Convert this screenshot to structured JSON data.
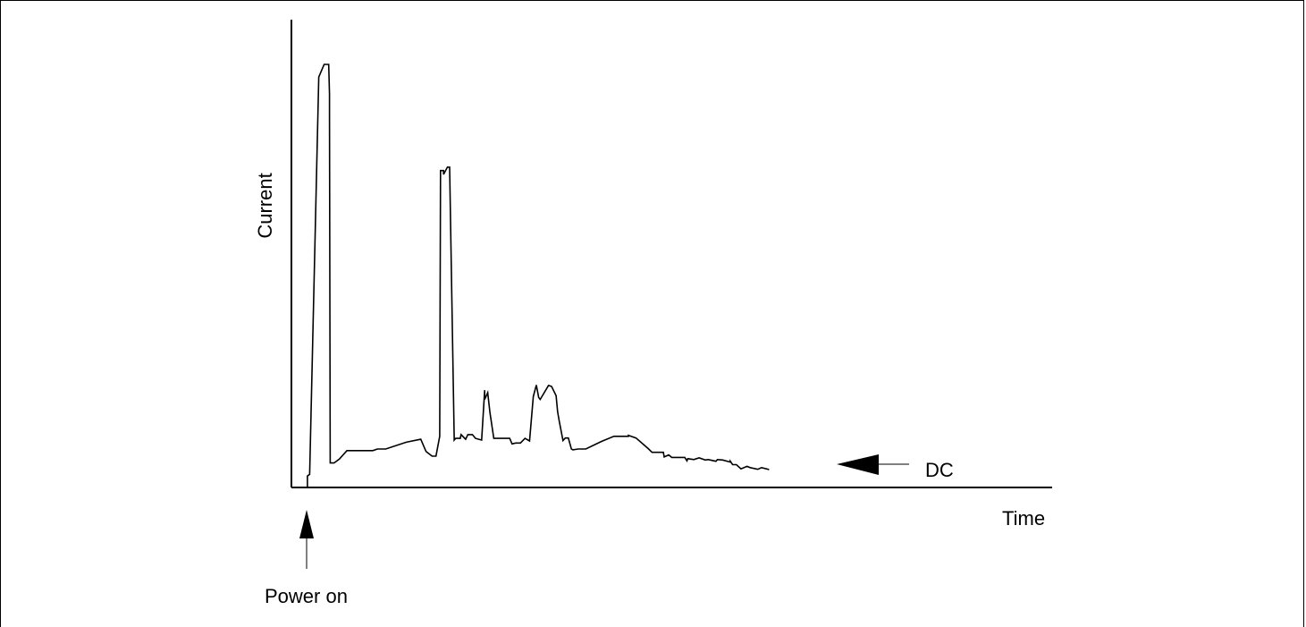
{
  "chart_data": {
    "type": "line",
    "title": "",
    "xlabel": "Time",
    "ylabel": "Current",
    "xlim": [
      0,
      100
    ],
    "ylim": [
      0,
      100
    ],
    "ticks": false,
    "grid": false,
    "series": [
      {
        "x": [
          2.1,
          2.1,
          2.4,
          3.6,
          4.3,
          4.9,
          5.0,
          5.0,
          5.1,
          5.6,
          6.3,
          7.3,
          10.7,
          11.3,
          12.4,
          15.1,
          17.0,
          17.7,
          18.5,
          19.0,
          19.5,
          19.6,
          20.0,
          20.0,
          20.5,
          20.8,
          21.4,
          21.4,
          21.6,
          22.2,
          22.3,
          22.9,
          23.2,
          23.8,
          24.2,
          25.0,
          25.4,
          25.4,
          25.8,
          26.1,
          26.6,
          28.7,
          29.0,
          29.5,
          30.1,
          30.7,
          31.3,
          31.8,
          32.2,
          32.5,
          32.7,
          33.8,
          34.2,
          34.8,
          35.0,
          35.2,
          35.7,
          36.0,
          36.4,
          36.8,
          37.0,
          37.7,
          38.7,
          40.8,
          42.4,
          44.3,
          44.3,
          45.3,
          45.3,
          46.9,
          47.4,
          48.9,
          49.0,
          49.6,
          50.0,
          51.7,
          52.0,
          52.1,
          52.9,
          53.6,
          54.4,
          54.8,
          55.8,
          56.0,
          56.7,
          57.7,
          57.7,
          58.0,
          58.5,
          59.1,
          59.9,
          60.3,
          61.3,
          61.8,
          62.7,
          62.7
        ],
        "values": [
          0,
          2.7,
          3.1,
          97,
          100,
          100,
          93,
          88,
          5.8,
          5.8,
          6.7,
          8.7,
          8.7,
          9.1,
          9.1,
          10.7,
          11.4,
          8.5,
          7.4,
          7.4,
          12.1,
          74.9,
          74.9,
          74.0,
          75.7,
          75.7,
          11.6,
          11.2,
          11.6,
          11.6,
          12.5,
          11.4,
          12.5,
          12.5,
          11.6,
          11.2,
          23.0,
          20.8,
          22.4,
          17.7,
          11.6,
          11.6,
          10.3,
          10.5,
          10.5,
          11.6,
          11.0,
          21.5,
          24.2,
          21.3,
          20.8,
          24.1,
          23.9,
          21.7,
          17.9,
          15.7,
          11.1,
          11.7,
          11.7,
          9.1,
          8.9,
          9.1,
          9.1,
          10.9,
          12.1,
          12.1,
          12.3,
          11.7,
          11.7,
          9.2,
          8.3,
          8.3,
          7.2,
          7.7,
          7.1,
          7.1,
          6.3,
          6.8,
          6.6,
          7.0,
          6.5,
          6.6,
          6.2,
          6.6,
          6.5,
          6.0,
          6.2,
          5.4,
          5.4,
          4.4,
          5.0,
          4.7,
          4.3,
          4.7,
          4.3,
          4.1
        ]
      }
    ],
    "annotations": [
      {
        "text": "Power on",
        "x": 2.1
      },
      {
        "text": "DC",
        "x": 63
      }
    ]
  }
}
